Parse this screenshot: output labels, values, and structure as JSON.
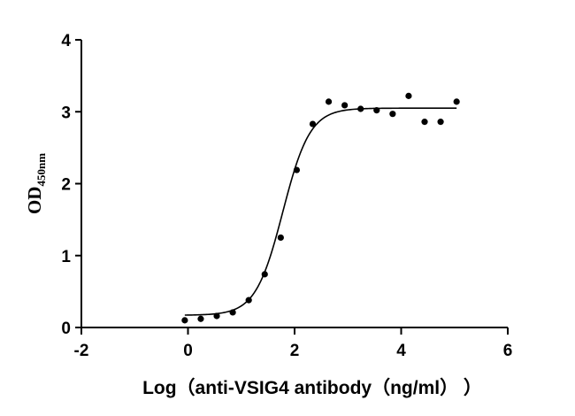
{
  "chart_data": {
    "type": "scatter",
    "xlabel": "Log（anti-VSIG4 antibody（ng/ml） ）",
    "ylabel_main": "OD",
    "ylabel_sub": "450nm",
    "xlim": [
      -2,
      6
    ],
    "ylim": [
      0,
      4
    ],
    "x_ticks": [
      -2,
      0,
      2,
      4,
      6
    ],
    "y_ticks": [
      0,
      1,
      2,
      3,
      4
    ],
    "x_tick_labels": [
      "-2",
      "0",
      "2",
      "4",
      "6"
    ],
    "y_tick_labels": [
      "0",
      "1",
      "2",
      "3",
      "4"
    ],
    "grid": false,
    "points": {
      "x": [
        -0.06,
        0.24,
        0.54,
        0.84,
        1.14,
        1.44,
        1.74,
        2.04,
        2.34,
        2.64,
        2.94,
        3.24,
        3.54,
        3.84,
        4.14,
        4.44,
        4.74,
        5.04
      ],
      "y": [
        0.1,
        0.12,
        0.16,
        0.21,
        0.38,
        0.74,
        1.25,
        2.19,
        2.83,
        3.14,
        3.09,
        3.04,
        3.02,
        2.97,
        3.22,
        2.86,
        2.86,
        3.14
      ]
    },
    "fit_curve": {
      "model": "four-parameter logistic",
      "bottom": 0.17,
      "top": 3.05,
      "log_ec50": 1.78,
      "hill_slope": 1.7,
      "x_range": [
        -0.06,
        5.04
      ]
    },
    "colors": {
      "points": "#000000",
      "curve": "#000000",
      "axes": "#000000"
    }
  }
}
